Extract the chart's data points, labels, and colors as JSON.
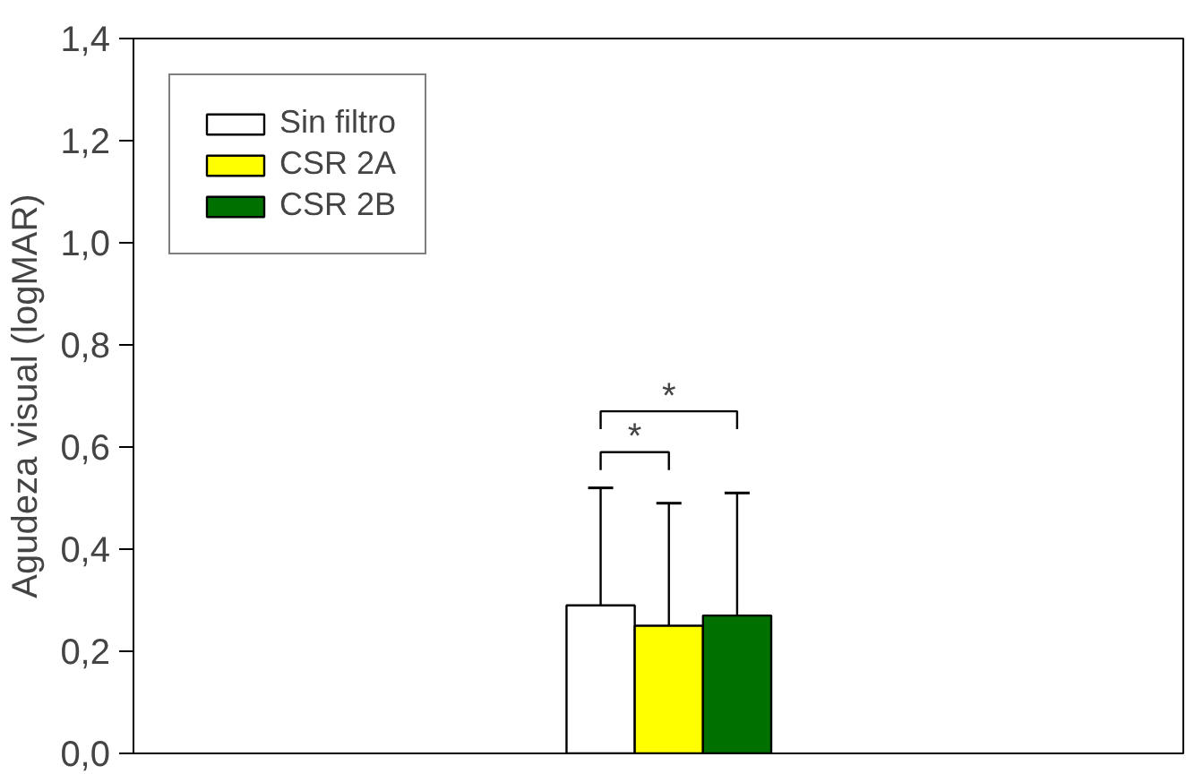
{
  "chart_data": {
    "type": "bar",
    "ylabel": "Agudeza visual (logMAR)",
    "categories": [
      null
    ],
    "series": [
      {
        "name": "Sin filtro",
        "color": "#ffffff",
        "values": [
          0.29
        ],
        "errors": [
          0.23
        ]
      },
      {
        "name": "CSR 2A",
        "color": "#ffff00",
        "values": [
          0.25
        ],
        "errors": [
          0.24
        ]
      },
      {
        "name": "CSR 2B",
        "color": "#007000",
        "values": [
          0.27
        ],
        "errors": [
          0.24
        ]
      }
    ],
    "ylim": [
      0,
      1.4
    ],
    "yticks": [
      {
        "value": 0,
        "label": "0,0"
      },
      {
        "value": 0.2,
        "label": "0,2"
      },
      {
        "value": 0.4,
        "label": "0,4"
      },
      {
        "value": 0.6,
        "label": "0,6"
      },
      {
        "value": 0.8,
        "label": "0,8"
      },
      {
        "value": 1.0,
        "label": "1,0"
      },
      {
        "value": 1.2,
        "label": "1,2"
      },
      {
        "value": 1.4,
        "label": "1,4"
      }
    ],
    "annotations": [
      "*",
      "*"
    ],
    "tick_labels": "y",
    "grid": false,
    "legend": "top left"
  }
}
